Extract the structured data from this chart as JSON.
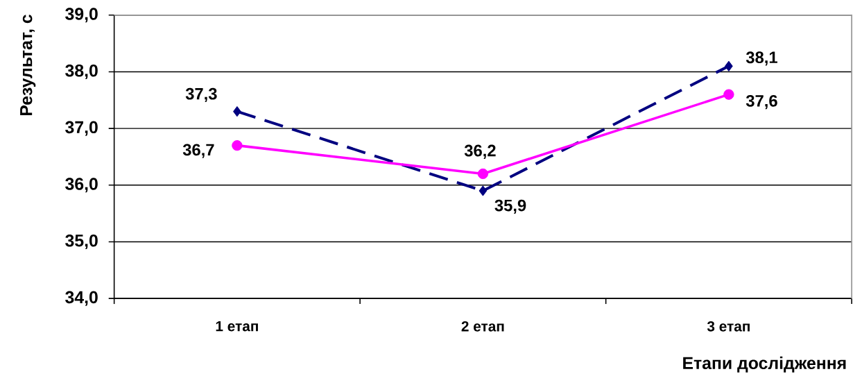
{
  "chart_data": {
    "type": "line",
    "xlabel": "Етапи дослідження",
    "ylabel": "Результат, с",
    "categories": [
      "1 етап",
      "2 етап",
      "3 етап"
    ],
    "series": [
      {
        "color": "#000080",
        "values": [
          37.3,
          35.9,
          38.1
        ],
        "value_labels": [
          "37,3",
          "35,9",
          "38,1"
        ],
        "marker": "diamond",
        "line_style": "dashed"
      },
      {
        "color": "#ff00ff",
        "values": [
          36.7,
          36.2,
          37.6
        ],
        "value_labels": [
          "36,7",
          "36,2",
          "37,6"
        ],
        "marker": "circle",
        "line_style": "solid"
      }
    ],
    "ylim": [
      34,
      39
    ],
    "yticks": [
      {
        "value": 34,
        "label": "34,0"
      },
      {
        "value": 35,
        "label": "35,0"
      },
      {
        "value": 36,
        "label": "36,0"
      },
      {
        "value": 37,
        "label": "37,0"
      },
      {
        "value": 38,
        "label": "38,0"
      },
      {
        "value": 39,
        "label": "39,0"
      }
    ],
    "grid": "y"
  }
}
